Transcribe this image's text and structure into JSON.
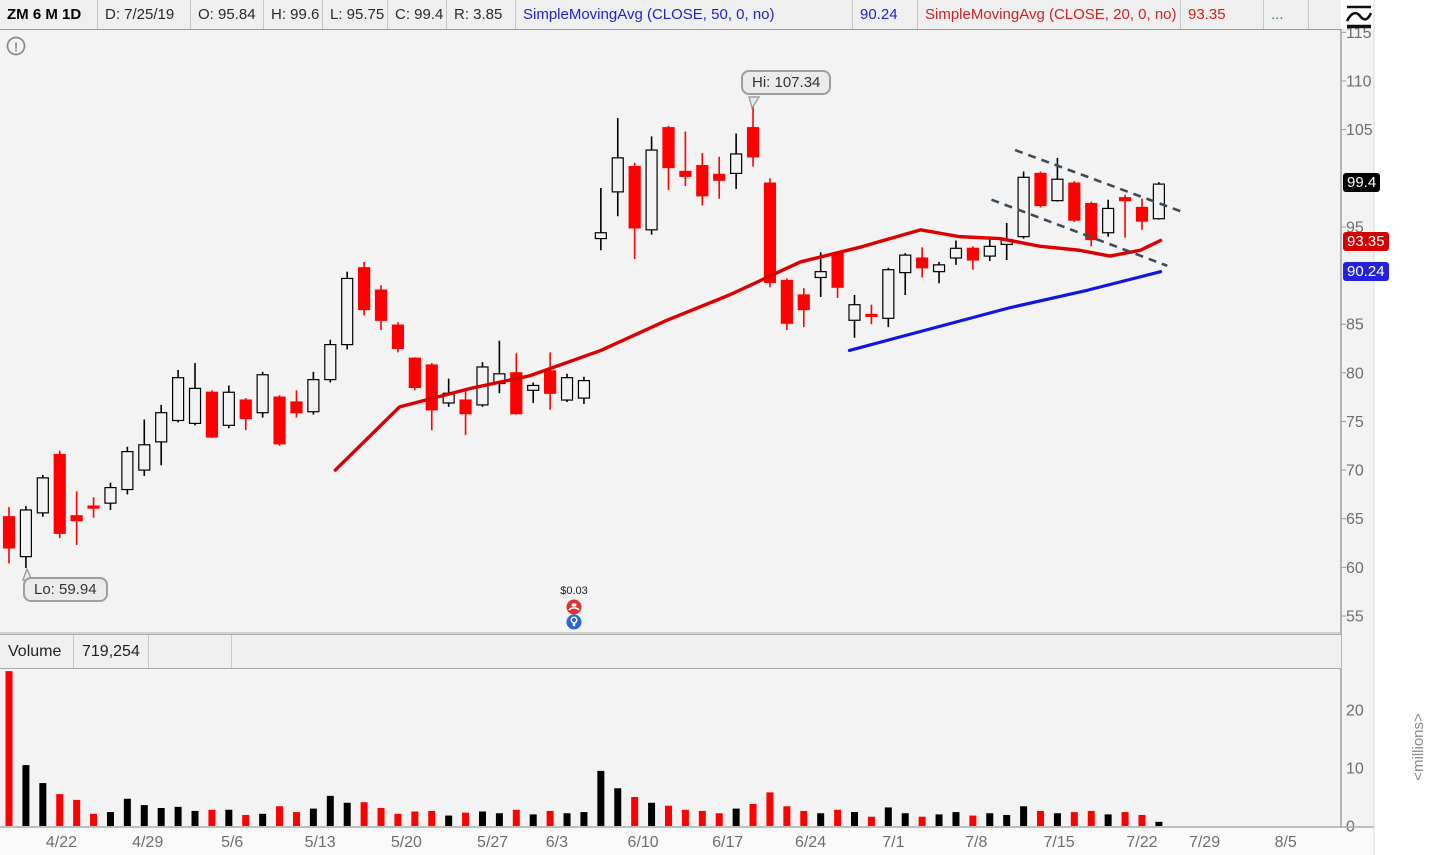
{
  "toolbar": {
    "symbol": "ZM 6 M 1D",
    "date": "D: 7/25/19",
    "open": "O: 95.84",
    "high": "H: 99.6",
    "low": "L: 95.75",
    "close": "C: 99.4",
    "range": "R: 3.85",
    "sma50_label": "SimpleMovingAvg (CLOSE, 50, 0, no)",
    "sma50_value": "90.24",
    "sma20_label": "SimpleMovingAvg (CLOSE, 20, 0, no)",
    "sma20_value": "93.35",
    "more": "..."
  },
  "axis": {
    "badges": [
      {
        "text": "99.4",
        "price": 99.4,
        "bg": "#000000"
      },
      {
        "text": "93.35",
        "price": 93.35,
        "bg": "#d40000"
      },
      {
        "text": "90.24",
        "price": 90.24,
        "bg": "#2222dd"
      }
    ]
  },
  "volume": {
    "label": "Volume",
    "value": "719,254",
    "unit": "<millions>",
    "ticks": [
      20,
      10,
      0
    ]
  },
  "annotations": {
    "hi_label": "Hi: 107.34",
    "lo_label": "Lo: 59.94",
    "dividend_label": "$0.03"
  },
  "chart_data": {
    "type": "candlestick+volume",
    "title": "ZM 6 M 1D",
    "price_ticks": [
      115,
      110,
      105,
      95,
      85,
      80,
      75,
      70,
      65,
      60,
      55
    ],
    "price_ylim": [
      53,
      115.5
    ],
    "volume_ylim_millions": [
      0,
      27
    ],
    "grid": false,
    "hi_point": {
      "slot": 44,
      "price": 107.34
    },
    "lo_point": {
      "slot": 1,
      "price": 59.94
    },
    "dividend_slot": 33.4,
    "date_labels": [
      {
        "t": "4/22",
        "slot": 3.1
      },
      {
        "t": "4/29",
        "slot": 8.2
      },
      {
        "t": "5/6",
        "slot": 13.2
      },
      {
        "t": "5/13",
        "slot": 18.4
      },
      {
        "t": "5/20",
        "slot": 23.5
      },
      {
        "t": "5/27",
        "slot": 28.6
      },
      {
        "t": "6/3",
        "slot": 32.4
      },
      {
        "t": "6/10",
        "slot": 37.5
      },
      {
        "t": "6/17",
        "slot": 42.5
      },
      {
        "t": "6/24",
        "slot": 47.4
      },
      {
        "t": "7/1",
        "slot": 52.3
      },
      {
        "t": "7/8",
        "slot": 57.2
      },
      {
        "t": "7/15",
        "slot": 62.1
      },
      {
        "t": "7/22",
        "slot": 67.0
      },
      {
        "t": "7/29",
        "slot": 70.7
      },
      {
        "t": "8/5",
        "slot": 75.5
      }
    ],
    "candles": [
      [
        "4/18",
        65.2,
        66.2,
        60.4,
        62.0,
        26.7
      ],
      [
        "4/22",
        61.1,
        66.3,
        59.94,
        65.9,
        10.5
      ],
      [
        "4/23",
        65.6,
        69.5,
        65.2,
        69.2,
        7.4
      ],
      [
        "4/24",
        71.6,
        72.0,
        63.0,
        63.5,
        5.5
      ],
      [
        "4/25",
        65.3,
        67.8,
        62.3,
        64.8,
        4.5
      ],
      [
        "4/26",
        66.3,
        67.2,
        65.1,
        66.1,
        2.1
      ],
      [
        "4/29",
        66.6,
        68.7,
        65.9,
        68.2,
        2.4
      ],
      [
        "4/30",
        68.0,
        72.4,
        67.5,
        71.9,
        4.7
      ],
      [
        "5/1",
        70.0,
        75.2,
        69.4,
        72.6,
        3.6
      ],
      [
        "5/2",
        72.9,
        76.7,
        70.5,
        75.9,
        3.1
      ],
      [
        "5/3",
        75.1,
        80.3,
        74.9,
        79.5,
        3.3
      ],
      [
        "5/6",
        74.8,
        81.0,
        74.6,
        78.4,
        2.6
      ],
      [
        "5/7",
        78.0,
        78.2,
        73.3,
        73.4,
        2.8
      ],
      [
        "5/8",
        74.6,
        78.7,
        74.3,
        78.0,
        2.8
      ],
      [
        "5/9",
        77.2,
        77.4,
        74.1,
        75.3,
        1.9
      ],
      [
        "5/10",
        75.9,
        80.1,
        75.4,
        79.8,
        2.1
      ],
      [
        "5/13",
        77.5,
        77.7,
        72.5,
        72.7,
        3.4
      ],
      [
        "5/14",
        77.0,
        78.2,
        75.4,
        75.9,
        2.4
      ],
      [
        "5/15",
        76.0,
        80.1,
        75.7,
        79.3,
        3.0
      ],
      [
        "5/16",
        79.3,
        83.4,
        79.0,
        82.9,
        5.2
      ],
      [
        "5/17",
        82.9,
        90.4,
        82.4,
        89.7,
        4.0
      ],
      [
        "5/20",
        90.8,
        91.4,
        85.9,
        86.5,
        4.1
      ],
      [
        "5/21",
        88.5,
        89.0,
        84.4,
        85.4,
        3.1
      ],
      [
        "5/22",
        84.9,
        85.2,
        82.1,
        82.5,
        2.1
      ],
      [
        "5/23",
        81.5,
        81.6,
        78.2,
        78.5,
        2.5
      ],
      [
        "5/24",
        80.8,
        81.0,
        74.1,
        76.2,
        2.6
      ],
      [
        "5/27",
        76.9,
        79.4,
        76.5,
        77.9,
        1.8
      ],
      [
        "5/28",
        77.2,
        78.2,
        73.6,
        75.8,
        2.3
      ],
      [
        "5/29",
        76.7,
        81.1,
        76.5,
        80.6,
        2.5
      ],
      [
        "5/30",
        78.9,
        83.3,
        77.9,
        79.9,
        2.2
      ],
      [
        "5/31",
        80.0,
        82.0,
        75.7,
        75.8,
        2.8
      ],
      [
        "6/3",
        78.2,
        79.0,
        76.9,
        78.7,
        2.0
      ],
      [
        "6/4",
        80.2,
        82.1,
        76.2,
        77.9,
        2.6
      ],
      [
        "6/5",
        77.2,
        79.9,
        77.0,
        79.5,
        2.2
      ],
      [
        "6/6",
        77.4,
        79.6,
        76.8,
        79.2,
        2.4
      ],
      [
        "6/7",
        93.8,
        99.0,
        92.6,
        94.4,
        9.5
      ],
      [
        "6/10",
        98.6,
        106.2,
        96.1,
        102.1,
        6.5
      ],
      [
        "6/11",
        101.2,
        101.6,
        91.7,
        94.9,
        5.0
      ],
      [
        "6/12",
        94.7,
        104.3,
        94.2,
        102.9,
        4.0
      ],
      [
        "6/13",
        105.2,
        105.4,
        98.8,
        101.1,
        3.5
      ],
      [
        "6/14",
        100.7,
        104.8,
        99.2,
        100.2,
        2.8
      ],
      [
        "6/17",
        101.3,
        102.6,
        97.2,
        98.2,
        2.6
      ],
      [
        "6/18",
        100.4,
        102.2,
        97.9,
        99.8,
        2.2
      ],
      [
        "6/19",
        100.5,
        104.6,
        98.9,
        102.5,
        3.0
      ],
      [
        "6/20",
        105.2,
        107.34,
        101.2,
        102.2,
        3.8
      ],
      [
        "6/21",
        99.5,
        100.0,
        88.8,
        89.3,
        5.8
      ],
      [
        "6/24",
        89.5,
        89.7,
        84.4,
        85.1,
        3.4
      ],
      [
        "6/25",
        88.0,
        88.7,
        84.7,
        86.5,
        2.6
      ],
      [
        "6/26",
        89.8,
        92.4,
        87.8,
        90.4,
        2.2
      ],
      [
        "6/27",
        92.3,
        92.4,
        87.7,
        88.8,
        2.8
      ],
      [
        "6/28",
        85.4,
        88.0,
        83.6,
        87.0,
        2.4
      ],
      [
        "7/1",
        86.0,
        87.0,
        85.0,
        85.8,
        1.6
      ],
      [
        "7/2",
        85.6,
        90.8,
        84.7,
        90.6,
        3.2
      ],
      [
        "7/3",
        90.3,
        92.3,
        88.0,
        92.1,
        2.2
      ],
      [
        "7/5",
        91.8,
        92.9,
        89.8,
        90.8,
        1.6
      ],
      [
        "7/8",
        90.4,
        91.4,
        89.2,
        91.1,
        2.0
      ],
      [
        "7/9",
        91.8,
        93.6,
        91.1,
        92.8,
        2.4
      ],
      [
        "7/10",
        92.8,
        93.0,
        90.6,
        91.6,
        1.8
      ],
      [
        "7/11",
        92.0,
        94.0,
        91.5,
        93.0,
        2.2
      ],
      [
        "7/12",
        93.2,
        95.4,
        91.6,
        93.7,
        1.9
      ],
      [
        "7/15",
        94.0,
        100.7,
        93.8,
        100.1,
        3.4
      ],
      [
        "7/16",
        100.5,
        100.7,
        97.0,
        97.2,
        2.6
      ],
      [
        "7/17",
        97.7,
        102.1,
        97.6,
        99.9,
        2.2
      ],
      [
        "7/18",
        99.5,
        99.7,
        95.5,
        95.7,
        2.4
      ],
      [
        "7/19",
        97.4,
        97.6,
        93.0,
        93.7,
        2.6
      ],
      [
        "7/22",
        94.4,
        97.8,
        94.0,
        96.9,
        2.0
      ],
      [
        "7/23",
        98.0,
        98.3,
        93.9,
        97.7,
        2.4
      ],
      [
        "7/24",
        97.0,
        97.9,
        94.7,
        95.6,
        1.9
      ],
      [
        "7/25",
        95.84,
        99.6,
        95.75,
        99.4,
        0.72
      ]
    ],
    "sma20_red": [
      [
        19.3,
        70.0
      ],
      [
        23.1,
        76.5
      ],
      [
        27.3,
        78.4
      ],
      [
        30.8,
        79.7
      ],
      [
        35.0,
        82.3
      ],
      [
        38.9,
        85.4
      ],
      [
        42.6,
        88.0
      ],
      [
        46.8,
        91.4
      ],
      [
        50.3,
        92.9
      ],
      [
        53.9,
        94.7
      ],
      [
        56.2,
        94.0
      ],
      [
        58.6,
        93.8
      ],
      [
        61.0,
        93.0
      ],
      [
        63.3,
        92.6
      ],
      [
        65.1,
        92.0
      ],
      [
        66.9,
        92.6
      ],
      [
        68.1,
        93.6
      ]
    ],
    "sma50_blue": [
      [
        49.7,
        82.3
      ],
      [
        59.2,
        86.7
      ],
      [
        63.8,
        88.5
      ],
      [
        68.1,
        90.4
      ]
    ],
    "trendlines": [
      {
        "from": [
          59.5,
          102.9
        ],
        "to": [
          69.3,
          96.6
        ]
      },
      {
        "from": [
          58.1,
          97.8
        ],
        "to": [
          68.5,
          91.0
        ]
      }
    ],
    "colors": {
      "down": "#fe0000",
      "up_fill": "#f3f3f3",
      "up_border": "#000000",
      "sma20": "#dd0000",
      "sma50": "#1515e0",
      "trendline": "#3d4c59",
      "volume_up": "#000000",
      "volume_down": "#fe0000",
      "badge_close": "#000000",
      "badge_sma20": "#d40000",
      "badge_sma50": "#2222dd"
    }
  }
}
